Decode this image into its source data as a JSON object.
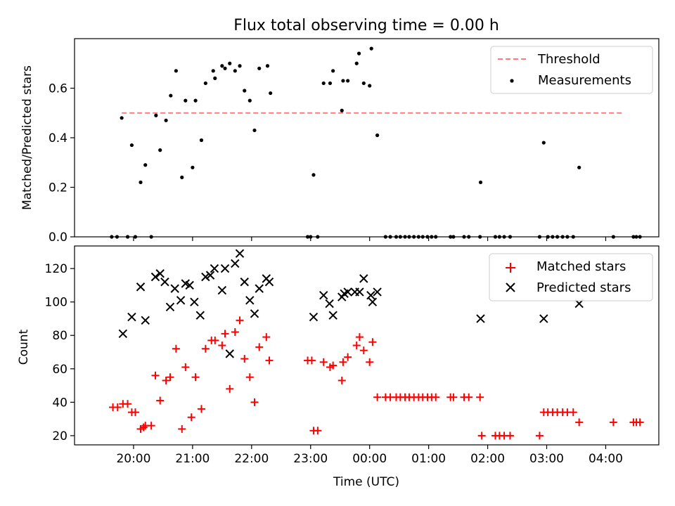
{
  "title": "Flux total observing time = 0.00 h",
  "chart_data": [
    {
      "type": "scatter",
      "ylabel": "Matched/Predicted stars",
      "ylim": [
        0,
        0.8
      ],
      "yticks": [
        0.0,
        0.2,
        0.4,
        0.6
      ],
      "ytick_labels": [
        "0.0",
        "0.2",
        "0.4",
        "0.6"
      ],
      "threshold": {
        "name": "Threshold",
        "y": 0.5,
        "x_range": [
          19.8,
          28.3
        ],
        "color": "#ff7a7a",
        "style": "dashed"
      },
      "series": [
        {
          "name": "Measurements",
          "color": "#000000",
          "marker": "dot",
          "points": [
            [
              19.63,
              0
            ],
            [
              19.72,
              0
            ],
            [
              19.8,
              0.48
            ],
            [
              19.9,
              0
            ],
            [
              19.97,
              0.37
            ],
            [
              20.03,
              0
            ],
            [
              20.12,
              0.22
            ],
            [
              20.2,
              0.29
            ],
            [
              20.3,
              0
            ],
            [
              20.38,
              0.49
            ],
            [
              20.45,
              0.35
            ],
            [
              20.55,
              0.47
            ],
            [
              20.63,
              0.57
            ],
            [
              20.72,
              0.67
            ],
            [
              20.82,
              0.24
            ],
            [
              20.88,
              0.55
            ],
            [
              21.0,
              0.28
            ],
            [
              21.05,
              0.55
            ],
            [
              21.15,
              0.39
            ],
            [
              21.22,
              0.62
            ],
            [
              21.35,
              0.67
            ],
            [
              21.38,
              0.64
            ],
            [
              21.5,
              0.69
            ],
            [
              21.55,
              0.68
            ],
            [
              21.63,
              0.7
            ],
            [
              21.72,
              0.67
            ],
            [
              21.8,
              0.69
            ],
            [
              21.88,
              0.59
            ],
            [
              21.97,
              0.55
            ],
            [
              22.05,
              0.43
            ],
            [
              22.13,
              0.68
            ],
            [
              22.27,
              0.69
            ],
            [
              22.32,
              0.58
            ],
            [
              22.95,
              0
            ],
            [
              23.0,
              0
            ],
            [
              23.05,
              0.25
            ],
            [
              23.12,
              0
            ],
            [
              23.22,
              0.62
            ],
            [
              23.33,
              0.62
            ],
            [
              23.38,
              0.67
            ],
            [
              23.53,
              0.51
            ],
            [
              23.55,
              0.63
            ],
            [
              23.63,
              0.63
            ],
            [
              23.78,
              0.7
            ],
            [
              23.82,
              0.74
            ],
            [
              23.9,
              0.62
            ],
            [
              24.0,
              0.61
            ],
            [
              24.03,
              0.76
            ],
            [
              24.13,
              0.41
            ],
            [
              24.27,
              0
            ],
            [
              24.35,
              0
            ],
            [
              24.45,
              0
            ],
            [
              24.52,
              0
            ],
            [
              24.6,
              0
            ],
            [
              24.67,
              0
            ],
            [
              24.75,
              0
            ],
            [
              24.83,
              0
            ],
            [
              24.9,
              0
            ],
            [
              24.98,
              0
            ],
            [
              25.05,
              0
            ],
            [
              25.12,
              0
            ],
            [
              25.37,
              0
            ],
            [
              25.42,
              0
            ],
            [
              25.6,
              0
            ],
            [
              25.68,
              0
            ],
            [
              25.87,
              0
            ],
            [
              25.88,
              0.22
            ],
            [
              26.13,
              0
            ],
            [
              26.2,
              0
            ],
            [
              26.28,
              0
            ],
            [
              26.38,
              0
            ],
            [
              26.88,
              0
            ],
            [
              26.95,
              0.38
            ],
            [
              27.02,
              0
            ],
            [
              27.1,
              0
            ],
            [
              27.18,
              0
            ],
            [
              27.27,
              0
            ],
            [
              27.35,
              0
            ],
            [
              27.45,
              0
            ],
            [
              27.55,
              0.28
            ],
            [
              28.13,
              0
            ],
            [
              28.47,
              0
            ],
            [
              28.52,
              0
            ],
            [
              28.58,
              0
            ]
          ]
        }
      ],
      "legend": {
        "position": "top-right"
      }
    },
    {
      "type": "scatter",
      "xlabel": "Time (UTC)",
      "ylabel": "Count",
      "ylim": [
        14.5,
        133.5
      ],
      "yticks": [
        20,
        40,
        60,
        80,
        100,
        120
      ],
      "ytick_labels": [
        "20",
        "40",
        "60",
        "80",
        "100",
        "120"
      ],
      "xlim": [
        19.0,
        28.9
      ],
      "xticks": [
        20,
        21,
        22,
        23,
        24,
        25,
        26,
        27,
        28
      ],
      "xtick_labels": [
        "20:00",
        "21:00",
        "22:00",
        "23:00",
        "00:00",
        "01:00",
        "02:00",
        "03:00",
        "04:00"
      ],
      "series": [
        {
          "name": "Matched stars",
          "color": "#ff0000",
          "marker": "plus",
          "points": [
            [
              19.65,
              37
            ],
            [
              19.73,
              37
            ],
            [
              19.82,
              39
            ],
            [
              19.9,
              39
            ],
            [
              19.97,
              34
            ],
            [
              20.03,
              34
            ],
            [
              20.12,
              24
            ],
            [
              20.17,
              25
            ],
            [
              20.2,
              26
            ],
            [
              20.3,
              26
            ],
            [
              20.37,
              56
            ],
            [
              20.45,
              41
            ],
            [
              20.55,
              53
            ],
            [
              20.62,
              55
            ],
            [
              20.72,
              72
            ],
            [
              20.82,
              24
            ],
            [
              20.88,
              61
            ],
            [
              20.98,
              31
            ],
            [
              21.05,
              55
            ],
            [
              21.15,
              36
            ],
            [
              21.22,
              72
            ],
            [
              21.32,
              77
            ],
            [
              21.38,
              77
            ],
            [
              21.5,
              74
            ],
            [
              21.55,
              81
            ],
            [
              21.63,
              48
            ],
            [
              21.72,
              82
            ],
            [
              21.8,
              89
            ],
            [
              21.88,
              66
            ],
            [
              21.97,
              55
            ],
            [
              22.05,
              40
            ],
            [
              22.13,
              73
            ],
            [
              22.25,
              79
            ],
            [
              22.3,
              65
            ],
            [
              22.95,
              65
            ],
            [
              23.02,
              65
            ],
            [
              23.05,
              23
            ],
            [
              23.12,
              23
            ],
            [
              23.22,
              64
            ],
            [
              23.33,
              61
            ],
            [
              23.38,
              62
            ],
            [
              23.53,
              53
            ],
            [
              23.55,
              64
            ],
            [
              23.63,
              67
            ],
            [
              23.78,
              74
            ],
            [
              23.83,
              79
            ],
            [
              23.9,
              71
            ],
            [
              24.0,
              64
            ],
            [
              24.05,
              76
            ],
            [
              24.13,
              43
            ],
            [
              24.27,
              43
            ],
            [
              24.35,
              43
            ],
            [
              24.45,
              43
            ],
            [
              24.52,
              43
            ],
            [
              24.6,
              43
            ],
            [
              24.67,
              43
            ],
            [
              24.75,
              43
            ],
            [
              24.83,
              43
            ],
            [
              24.9,
              43
            ],
            [
              24.98,
              43
            ],
            [
              25.05,
              43
            ],
            [
              25.12,
              43
            ],
            [
              25.37,
              43
            ],
            [
              25.42,
              43
            ],
            [
              25.6,
              43
            ],
            [
              25.68,
              43
            ],
            [
              25.87,
              43
            ],
            [
              25.9,
              20
            ],
            [
              26.13,
              20
            ],
            [
              26.2,
              20
            ],
            [
              26.28,
              20
            ],
            [
              26.38,
              20
            ],
            [
              26.88,
              20
            ],
            [
              26.95,
              34
            ],
            [
              27.02,
              34
            ],
            [
              27.1,
              34
            ],
            [
              27.18,
              34
            ],
            [
              27.27,
              34
            ],
            [
              27.35,
              34
            ],
            [
              27.45,
              34
            ],
            [
              27.55,
              28
            ],
            [
              28.13,
              28
            ],
            [
              28.47,
              28
            ],
            [
              28.52,
              28
            ],
            [
              28.58,
              28
            ]
          ]
        },
        {
          "name": "Predicted stars",
          "color": "#000000",
          "marker": "x",
          "points": [
            [
              19.82,
              81
            ],
            [
              19.97,
              91
            ],
            [
              20.12,
              109
            ],
            [
              20.2,
              89
            ],
            [
              20.37,
              115
            ],
            [
              20.45,
              117
            ],
            [
              20.53,
              112
            ],
            [
              20.62,
              97
            ],
            [
              20.7,
              108
            ],
            [
              20.8,
              101
            ],
            [
              20.88,
              111
            ],
            [
              20.95,
              110
            ],
            [
              21.03,
              100
            ],
            [
              21.13,
              92
            ],
            [
              21.22,
              115
            ],
            [
              21.3,
              116
            ],
            [
              21.37,
              120
            ],
            [
              21.5,
              107
            ],
            [
              21.55,
              120
            ],
            [
              21.63,
              69
            ],
            [
              21.72,
              123
            ],
            [
              21.8,
              129
            ],
            [
              21.88,
              112
            ],
            [
              21.97,
              101
            ],
            [
              22.05,
              93
            ],
            [
              22.13,
              108
            ],
            [
              22.25,
              114
            ],
            [
              22.3,
              112
            ],
            [
              23.05,
              91
            ],
            [
              23.22,
              104
            ],
            [
              23.32,
              99
            ],
            [
              23.38,
              92
            ],
            [
              23.53,
              103
            ],
            [
              23.57,
              105
            ],
            [
              23.63,
              106
            ],
            [
              23.75,
              106
            ],
            [
              23.83,
              106
            ],
            [
              23.9,
              114
            ],
            [
              24.02,
              104
            ],
            [
              24.05,
              100
            ],
            [
              24.13,
              106
            ],
            [
              25.88,
              90
            ],
            [
              26.95,
              90
            ],
            [
              27.55,
              99
            ]
          ]
        }
      ],
      "legend": {
        "position": "top-right"
      }
    }
  ]
}
